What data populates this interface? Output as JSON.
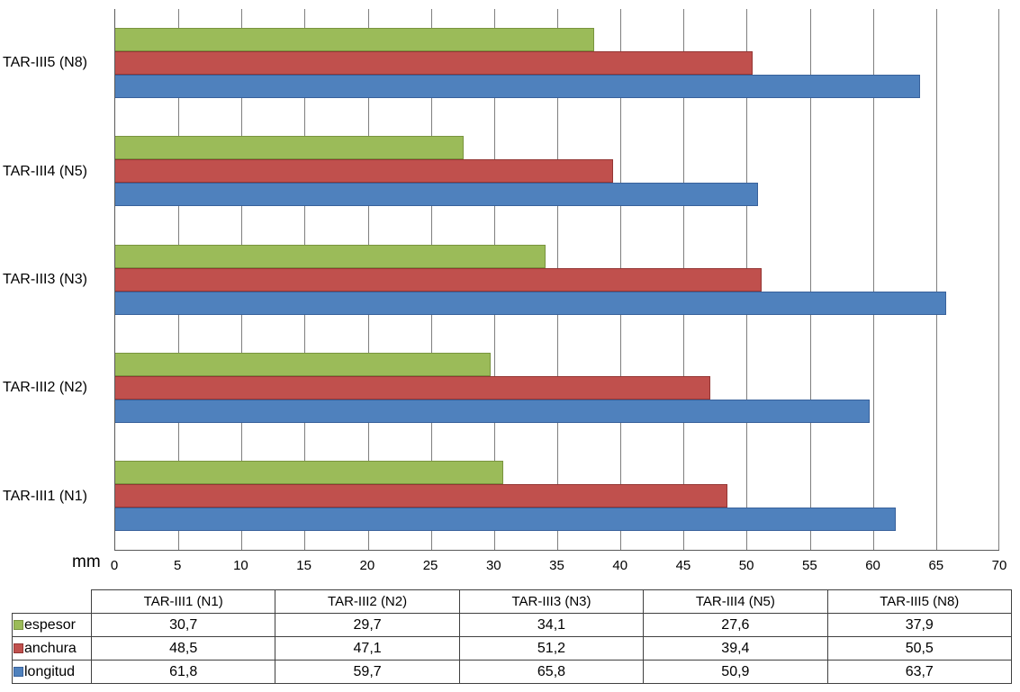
{
  "chart_data": {
    "type": "bar",
    "orientation": "horizontal",
    "title": "",
    "xlabel": "mm",
    "ylabel": "",
    "xlim": [
      0,
      70
    ],
    "x_ticks": [
      0,
      5,
      10,
      15,
      20,
      25,
      30,
      35,
      40,
      45,
      50,
      55,
      60,
      65,
      70
    ],
    "grid": true,
    "category_order_top_to_bottom": [
      "TAR-III5 (N8)",
      "TAR-III4 (N5)",
      "TAR-III3 (N3)",
      "TAR-III2 (N2)",
      "TAR-III1 (N1)"
    ],
    "categories": [
      "TAR-III1 (N1)",
      "TAR-III2 (N2)",
      "TAR-III3 (N3)",
      "TAR-III4 (N5)",
      "TAR-III5 (N8)"
    ],
    "series": [
      {
        "name": "espesor",
        "color": "#9BBB59",
        "border_color": "#79943F",
        "values": [
          30.7,
          29.7,
          34.1,
          27.6,
          37.9
        ],
        "values_display": [
          "30,7",
          "29,7",
          "34,1",
          "27,6",
          "37,9"
        ]
      },
      {
        "name": "anchura",
        "color": "#C0504D",
        "border_color": "#943634",
        "values": [
          48.5,
          47.1,
          51.2,
          39.4,
          50.5
        ],
        "values_display": [
          "48,5",
          "47,1",
          "51,2",
          "39,4",
          "50,5"
        ]
      },
      {
        "name": "longitud",
        "color": "#4F81BD",
        "border_color": "#38619B",
        "values": [
          61.8,
          59.7,
          65.8,
          50.9,
          63.7
        ],
        "values_display": [
          "61,8",
          "59,7",
          "65,8",
          "50,9",
          "63,7"
        ]
      }
    ],
    "legend_position": "table-left-column"
  },
  "colors": {
    "background": "#FFFFFF",
    "gridline": "#7F7F7F",
    "axis_line": "#595959",
    "table_border": "#404040",
    "text": "#000000"
  }
}
